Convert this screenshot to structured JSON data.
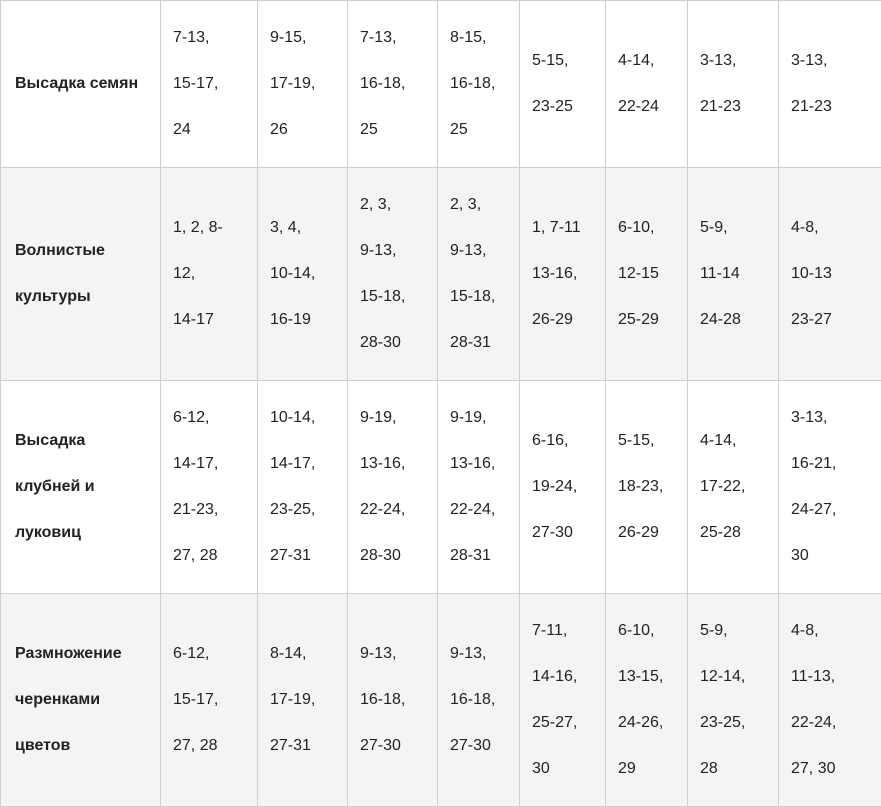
{
  "table": {
    "column_count": 9,
    "label_color": "#1e7b78",
    "rows": [
      {
        "label": [
          "Высадка семян"
        ],
        "cells": [
          [
            "7-13,",
            "15-17,",
            "24"
          ],
          [
            "9-15,",
            "17-19,",
            "26"
          ],
          [
            "7-13,",
            "16-18,",
            "25"
          ],
          [
            "8-15,",
            "16-18,",
            "25"
          ],
          [
            "5-15,",
            "23-25"
          ],
          [
            "4-14,",
            "22-24"
          ],
          [
            "3-13,",
            "21-23"
          ],
          [
            "3-13,",
            "21-23"
          ]
        ]
      },
      {
        "label": [
          "Волнистые",
          "культуры"
        ],
        "cells": [
          [
            "1, 2, 8-",
            "12,",
            "14-17"
          ],
          [
            "3, 4,",
            "10-14,",
            "16-19"
          ],
          [
            "2, 3,",
            "9-13,",
            "15-18,",
            "28-30"
          ],
          [
            "2, 3,",
            "9-13,",
            "15-18,",
            "28-31"
          ],
          [
            "1, 7-11",
            "13-16,",
            "26-29"
          ],
          [
            "6-10,",
            "12-15",
            "25-29"
          ],
          [
            "5-9,",
            "11-14",
            "24-28"
          ],
          [
            "4-8,",
            "10-13",
            "23-27"
          ]
        ]
      },
      {
        "label": [
          "Высадка",
          "клубней и",
          "луковиц"
        ],
        "cells": [
          [
            "6-12,",
            "14-17,",
            "21-23,",
            "27, 28"
          ],
          [
            "10-14,",
            "14-17,",
            "23-25,",
            "27-31"
          ],
          [
            "9-19,",
            "13-16,",
            "22-24,",
            "28-30"
          ],
          [
            "9-19,",
            "13-16,",
            "22-24,",
            "28-31"
          ],
          [
            "6-16,",
            "19-24,",
            "27-30"
          ],
          [
            "5-15,",
            "18-23,",
            "26-29"
          ],
          [
            "4-14,",
            "17-22,",
            "25-28"
          ],
          [
            "3-13,",
            "16-21,",
            "24-27,",
            "30"
          ]
        ]
      },
      {
        "label": [
          "Размножение",
          "черенками",
          "цветов"
        ],
        "cells": [
          [
            "6-12,",
            "15-17,",
            "27, 28"
          ],
          [
            "8-14,",
            "17-19,",
            "27-31"
          ],
          [
            "9-13,",
            "16-18,",
            "27-30"
          ],
          [
            "9-13,",
            "16-18,",
            "27-30"
          ],
          [
            "7-11,",
            "14-16,",
            "25-27,",
            "30"
          ],
          [
            "6-10,",
            "13-15,",
            "24-26,",
            "29"
          ],
          [
            "5-9,",
            "12-14,",
            "23-25,",
            "28"
          ],
          [
            "4-8,",
            "11-13,",
            "22-24,",
            "27, 30"
          ]
        ]
      }
    ]
  }
}
